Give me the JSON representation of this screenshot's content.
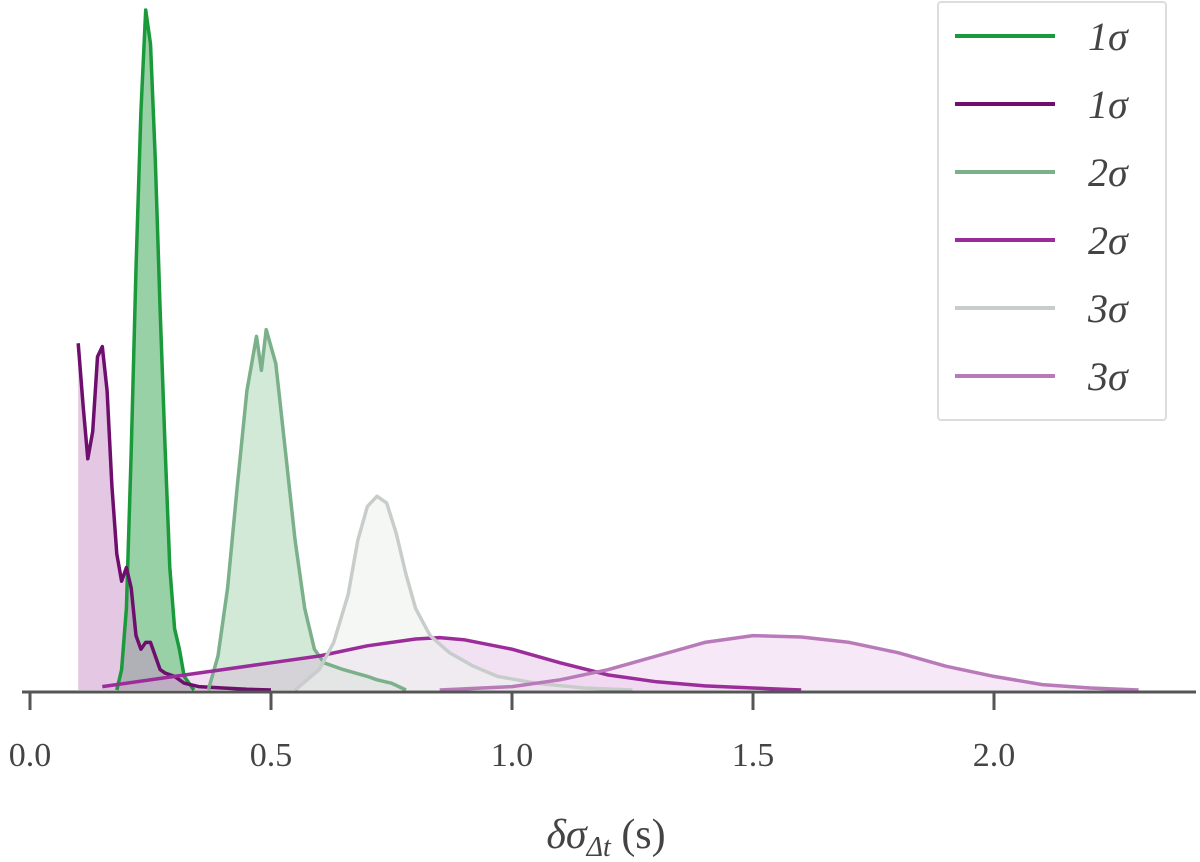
{
  "chart_data": {
    "type": "area",
    "title": "",
    "xlabel": "δσ_Δt (s)",
    "ylabel": "",
    "xlim": [
      -0.02,
      2.42
    ],
    "ylim": [
      0,
      1
    ],
    "x_ticks": [
      0.0,
      0.5,
      1.0,
      1.5,
      2.0
    ],
    "x_tick_labels": [
      "0.0",
      "0.5",
      "1.0",
      "1.5",
      "2.0"
    ],
    "grid": false,
    "legend_position": "top-right",
    "series": [
      {
        "name": "1σ",
        "color": "#1a9a3a",
        "fill_color": "#1a9a3a",
        "fill_opacity": 0.45,
        "points": [
          [
            0.18,
            0.0
          ],
          [
            0.19,
            0.03
          ],
          [
            0.2,
            0.12
          ],
          [
            0.21,
            0.35
          ],
          [
            0.22,
            0.62
          ],
          [
            0.23,
            0.85
          ],
          [
            0.24,
            1.0
          ],
          [
            0.25,
            0.95
          ],
          [
            0.26,
            0.78
          ],
          [
            0.27,
            0.56
          ],
          [
            0.28,
            0.36
          ],
          [
            0.29,
            0.18
          ],
          [
            0.3,
            0.09
          ],
          [
            0.31,
            0.06
          ],
          [
            0.32,
            0.02
          ],
          [
            0.34,
            0.0
          ]
        ]
      },
      {
        "name": "1σ",
        "color": "#6e0f6e",
        "fill_color": "#c88fc8",
        "fill_opacity": 0.5,
        "points": [
          [
            0.1,
            0.51
          ],
          [
            0.11,
            0.42
          ],
          [
            0.12,
            0.34
          ],
          [
            0.13,
            0.38
          ],
          [
            0.14,
            0.49
          ],
          [
            0.15,
            0.505
          ],
          [
            0.16,
            0.44
          ],
          [
            0.17,
            0.3
          ],
          [
            0.18,
            0.2
          ],
          [
            0.19,
            0.16
          ],
          [
            0.2,
            0.18
          ],
          [
            0.21,
            0.15
          ],
          [
            0.22,
            0.08
          ],
          [
            0.23,
            0.06
          ],
          [
            0.24,
            0.07
          ],
          [
            0.25,
            0.07
          ],
          [
            0.26,
            0.05
          ],
          [
            0.27,
            0.03
          ],
          [
            0.28,
            0.025
          ],
          [
            0.3,
            0.02
          ],
          [
            0.32,
            0.01
          ],
          [
            0.35,
            0.005
          ],
          [
            0.4,
            0.003
          ],
          [
            0.45,
            0.001
          ],
          [
            0.5,
            0.0
          ]
        ]
      },
      {
        "name": "2σ",
        "color": "#7ab08a",
        "fill_color": "#a8d4b2",
        "fill_opacity": 0.5,
        "points": [
          [
            0.37,
            0.0
          ],
          [
            0.39,
            0.05
          ],
          [
            0.41,
            0.15
          ],
          [
            0.43,
            0.3
          ],
          [
            0.45,
            0.44
          ],
          [
            0.47,
            0.52
          ],
          [
            0.48,
            0.47
          ],
          [
            0.49,
            0.53
          ],
          [
            0.51,
            0.48
          ],
          [
            0.53,
            0.35
          ],
          [
            0.55,
            0.22
          ],
          [
            0.57,
            0.12
          ],
          [
            0.59,
            0.06
          ],
          [
            0.61,
            0.04
          ],
          [
            0.65,
            0.03
          ],
          [
            0.7,
            0.02
          ],
          [
            0.72,
            0.015
          ],
          [
            0.75,
            0.01
          ],
          [
            0.78,
            0.0
          ]
        ]
      },
      {
        "name": "2σ",
        "color": "#9a2d9a",
        "fill_color": "#d9a8d9",
        "fill_opacity": 0.35,
        "points": [
          [
            0.15,
            0.005
          ],
          [
            0.3,
            0.02
          ],
          [
            0.4,
            0.03
          ],
          [
            0.5,
            0.04
          ],
          [
            0.6,
            0.05
          ],
          [
            0.7,
            0.065
          ],
          [
            0.8,
            0.075
          ],
          [
            0.85,
            0.077
          ],
          [
            0.9,
            0.074
          ],
          [
            1.0,
            0.06
          ],
          [
            1.1,
            0.04
          ],
          [
            1.2,
            0.022
          ],
          [
            1.3,
            0.012
          ],
          [
            1.4,
            0.006
          ],
          [
            1.5,
            0.003
          ],
          [
            1.6,
            0.0
          ]
        ]
      },
      {
        "name": "3σ",
        "color": "#c8cdcb",
        "fill_color": "#eef2ef",
        "fill_opacity": 0.6,
        "points": [
          [
            0.55,
            0.0
          ],
          [
            0.6,
            0.03
          ],
          [
            0.63,
            0.07
          ],
          [
            0.66,
            0.14
          ],
          [
            0.68,
            0.22
          ],
          [
            0.7,
            0.27
          ],
          [
            0.72,
            0.285
          ],
          [
            0.74,
            0.275
          ],
          [
            0.76,
            0.23
          ],
          [
            0.78,
            0.17
          ],
          [
            0.8,
            0.12
          ],
          [
            0.83,
            0.08
          ],
          [
            0.87,
            0.055
          ],
          [
            0.92,
            0.035
          ],
          [
            0.97,
            0.02
          ],
          [
            1.05,
            0.01
          ],
          [
            1.15,
            0.003
          ],
          [
            1.25,
            0.0
          ]
        ]
      },
      {
        "name": "3σ",
        "color": "#b97ab9",
        "fill_color": "#f0d6f0",
        "fill_opacity": 0.55,
        "points": [
          [
            0.85,
            0.0
          ],
          [
            1.0,
            0.005
          ],
          [
            1.1,
            0.015
          ],
          [
            1.2,
            0.03
          ],
          [
            1.3,
            0.05
          ],
          [
            1.4,
            0.07
          ],
          [
            1.5,
            0.08
          ],
          [
            1.6,
            0.078
          ],
          [
            1.7,
            0.07
          ],
          [
            1.8,
            0.055
          ],
          [
            1.9,
            0.035
          ],
          [
            2.0,
            0.02
          ],
          [
            2.1,
            0.008
          ],
          [
            2.2,
            0.003
          ],
          [
            2.3,
            0.0
          ]
        ]
      }
    ]
  }
}
